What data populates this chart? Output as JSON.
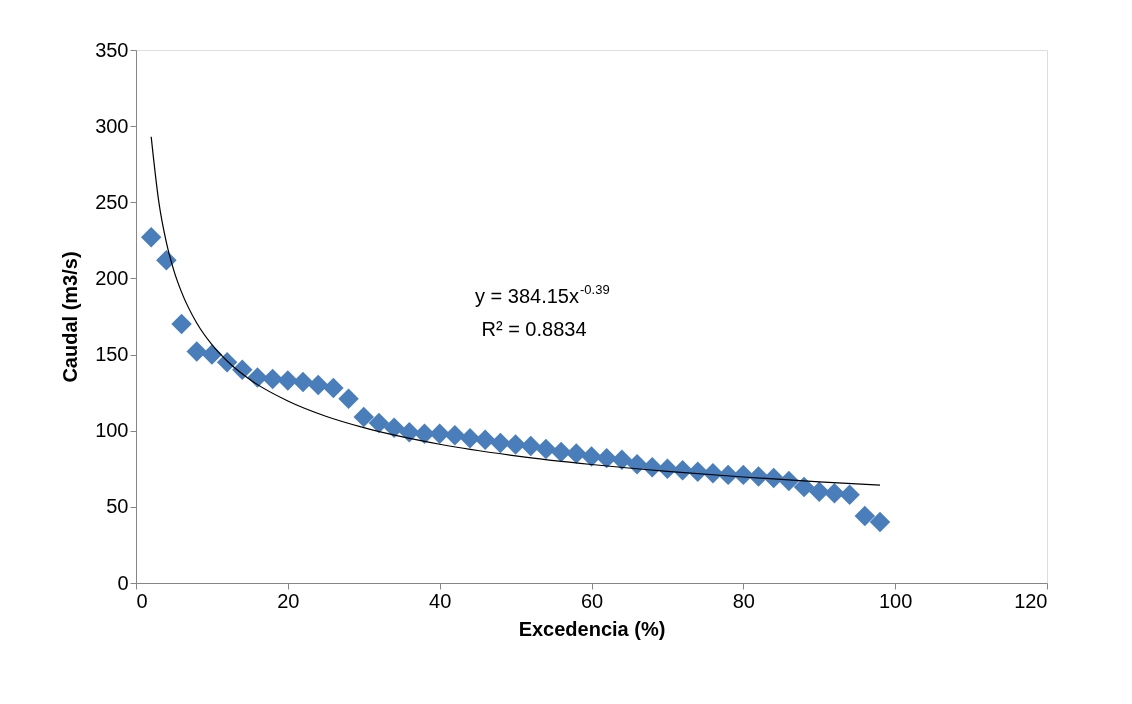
{
  "chart_data": {
    "type": "scatter",
    "xlabel": "Excedencia (%)",
    "ylabel": "Caudal (m3/s)",
    "xlim": [
      0,
      120
    ],
    "xticks": [
      0,
      20,
      40,
      60,
      80,
      100,
      120
    ],
    "ylim": [
      0,
      350
    ],
    "yticks": [
      0,
      50,
      100,
      150,
      200,
      250,
      300,
      350
    ],
    "grid": false,
    "marker": "diamond",
    "annotations": [
      "y = 384.15x$^{-0.39}$",
      "R² = 0.8834"
    ],
    "series": [
      {
        "color": "#4a7ebb",
        "x": [
          2,
          4,
          6,
          8,
          10,
          12,
          14,
          16,
          18,
          20,
          22,
          24,
          26,
          28,
          30,
          32,
          34,
          36,
          38,
          40,
          42,
          44,
          46,
          48,
          50,
          52,
          54,
          56,
          58,
          60,
          62,
          64,
          66,
          68,
          70,
          72,
          74,
          76,
          78,
          80,
          82,
          84,
          86,
          88,
          90,
          92,
          94,
          96,
          98
        ],
        "values": [
          227,
          212,
          170,
          152,
          150,
          145,
          140,
          135,
          134,
          133,
          132,
          130,
          128,
          121,
          109,
          105,
          102,
          99,
          98,
          98,
          97,
          95,
          94,
          92,
          91,
          90,
          88,
          86,
          85,
          83,
          82,
          81,
          78,
          76,
          75,
          74,
          73,
          72,
          71,
          71,
          70,
          69,
          67,
          63,
          60,
          59,
          58,
          44,
          40
        ]
      },
      {
        "type": "line",
        "color": "#000000",
        "line_style": "solid",
        "marker": "none",
        "x": [
          2,
          3,
          4,
          5,
          6,
          8,
          10,
          12,
          15,
          20,
          25,
          30,
          40,
          50,
          60,
          70,
          80,
          90,
          98
        ],
        "values": [
          293,
          250.4,
          223.6,
          205,
          191,
          170.7,
          156.5,
          145.8,
          133.6,
          119.5,
          109.5,
          102,
          91.1,
          83.5,
          77.8,
          73.3,
          69.6,
          66.4,
          64.3
        ]
      }
    ]
  }
}
